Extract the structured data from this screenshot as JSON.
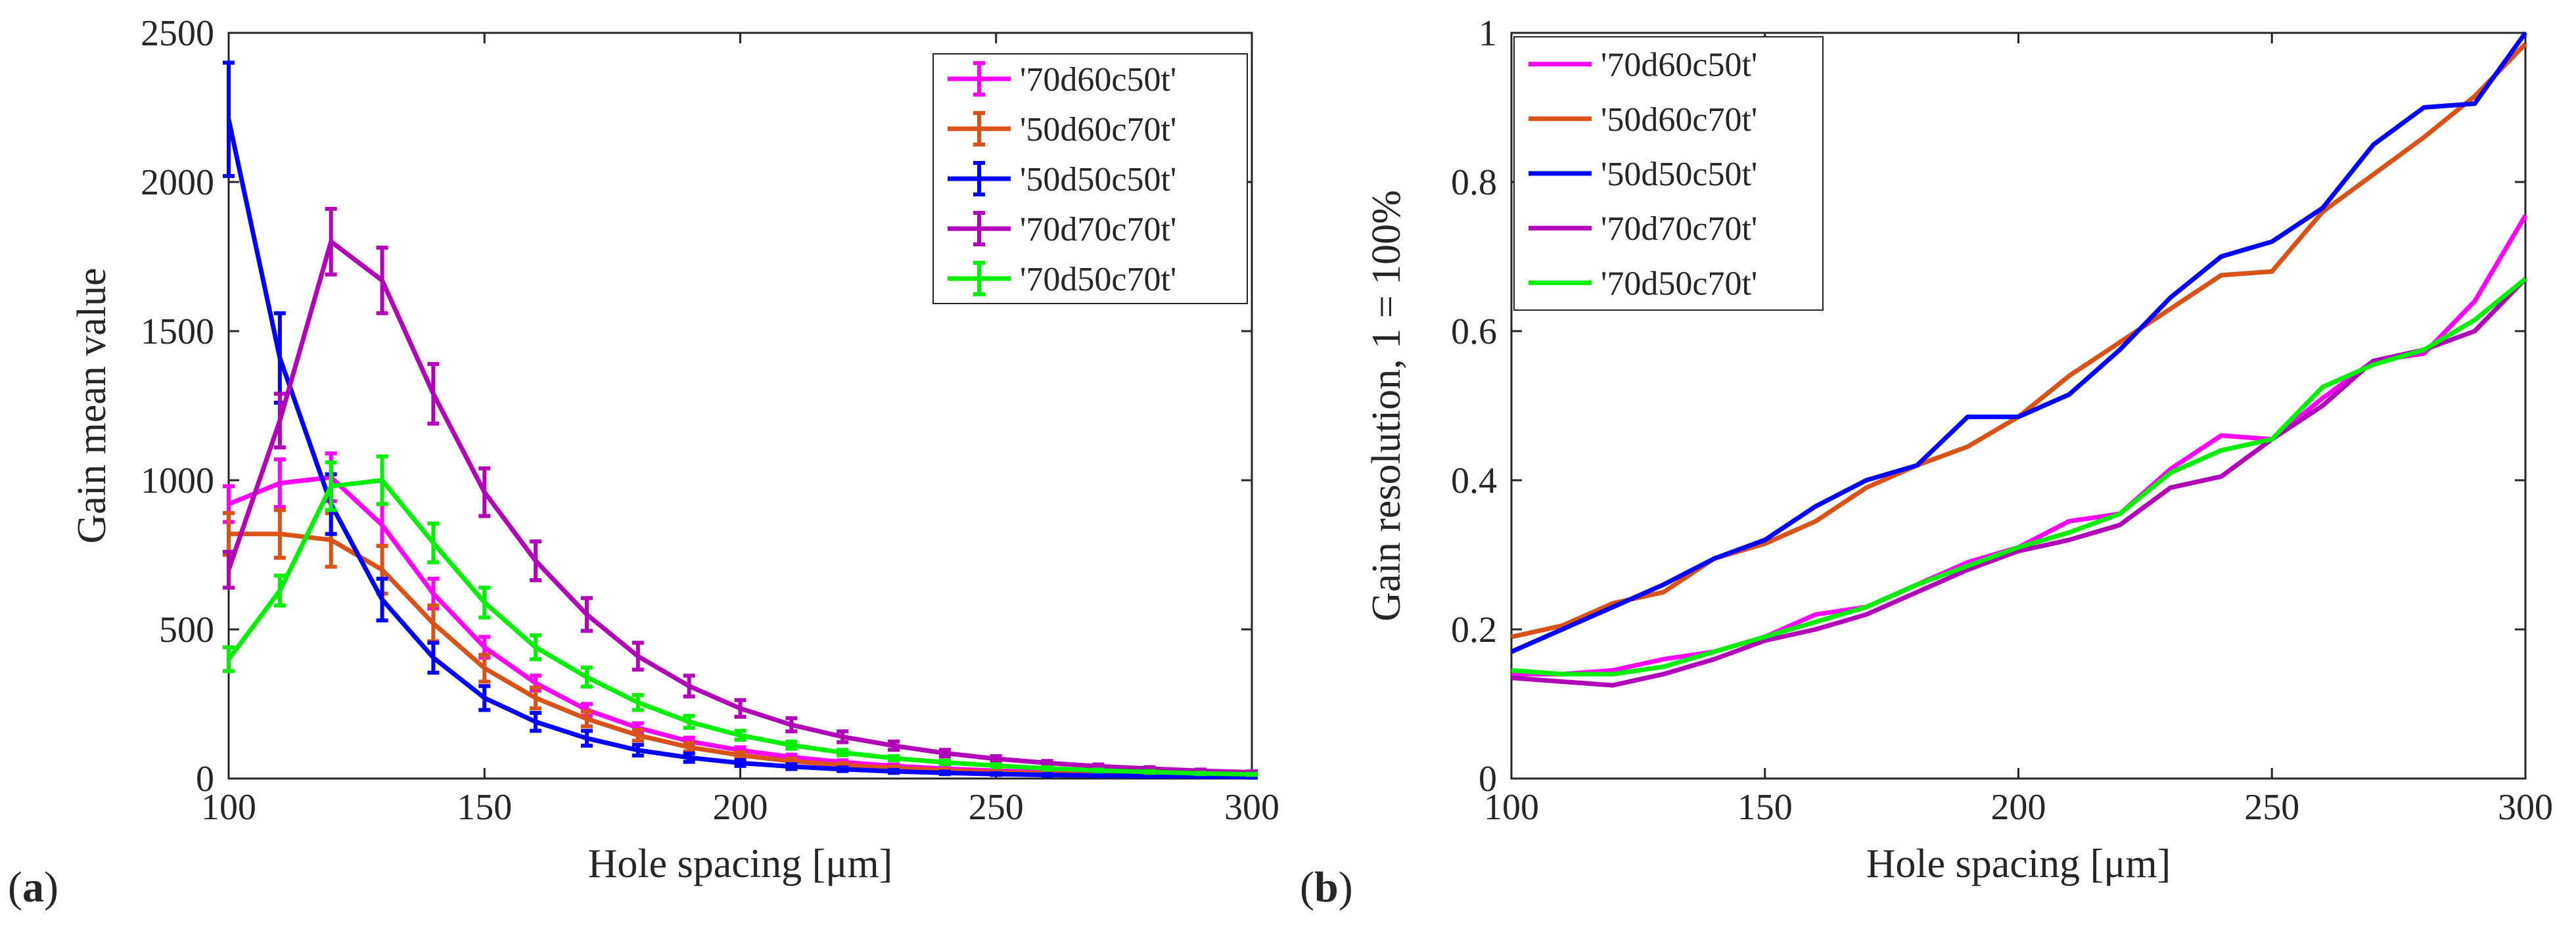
{
  "panel_labels": {
    "a_prefix": "(",
    "a_letter": "a",
    "a_suffix": ")",
    "b_prefix": "(",
    "b_letter": "b",
    "b_suffix": ")"
  },
  "colors": {
    "magenta": "#ff00ff",
    "orange": "#d95319",
    "blue": "#0000ff",
    "purple": "#b000b8",
    "green": "#00ee00",
    "axis": "#262626"
  },
  "chart_data": [
    {
      "type": "line",
      "panel": "a",
      "xlabel": "Hole spacing [μm]",
      "ylabel": "Gain mean value",
      "xlim": [
        100,
        300
      ],
      "ylim": [
        0,
        2500
      ],
      "xticks": [
        100,
        150,
        200,
        250,
        300
      ],
      "yticks": [
        0,
        500,
        1000,
        1500,
        2000,
        2500
      ],
      "legend_position": "top-right",
      "error_bars": true,
      "x": [
        100,
        110,
        120,
        130,
        140,
        150,
        160,
        170,
        180,
        190,
        200,
        210,
        220,
        230,
        240,
        250,
        260,
        270,
        280,
        290,
        300
      ],
      "series": [
        {
          "name": "'70d60c50t'",
          "color": "#ff00ff",
          "values": [
            920,
            990,
            1010,
            850,
            620,
            440,
            320,
            230,
            170,
            125,
            95,
            72,
            55,
            42,
            33,
            26,
            20,
            16,
            13,
            10,
            8
          ],
          "errors": [
            60,
            80,
            80,
            70,
            50,
            35,
            25,
            20,
            15,
            12,
            10,
            8,
            6,
            5,
            4,
            3,
            3,
            2,
            2,
            2,
            2
          ]
        },
        {
          "name": "'50d60c70t'",
          "color": "#d95319",
          "values": [
            820,
            820,
            800,
            700,
            520,
            370,
            270,
            200,
            145,
            105,
            78,
            58,
            45,
            35,
            27,
            21,
            17,
            13,
            11,
            9,
            7
          ],
          "errors": [
            70,
            80,
            90,
            80,
            60,
            45,
            35,
            25,
            18,
            14,
            10,
            8,
            6,
            5,
            4,
            3,
            3,
            2,
            2,
            2,
            2
          ]
        },
        {
          "name": "'50d50c50t'",
          "color": "#0000ff",
          "values": [
            2210,
            1410,
            920,
            600,
            405,
            270,
            190,
            135,
            95,
            70,
            52,
            40,
            31,
            24,
            19,
            15,
            12,
            10,
            8,
            7,
            5
          ],
          "errors": [
            190,
            150,
            100,
            70,
            50,
            40,
            30,
            25,
            18,
            14,
            10,
            8,
            6,
            5,
            4,
            3,
            3,
            2,
            2,
            2,
            2
          ]
        },
        {
          "name": "'70d70c70t'",
          "color": "#b000b8",
          "values": [
            700,
            1200,
            1800,
            1670,
            1290,
            960,
            730,
            550,
            410,
            310,
            235,
            180,
            140,
            110,
            85,
            66,
            52,
            41,
            33,
            26,
            21
          ],
          "errors": [
            60,
            90,
            110,
            110,
            100,
            80,
            65,
            55,
            45,
            35,
            28,
            22,
            18,
            14,
            11,
            9,
            7,
            6,
            5,
            4,
            3
          ]
        },
        {
          "name": "'70d50c70t'",
          "color": "#00ee00",
          "values": [
            400,
            630,
            980,
            1000,
            790,
            590,
            440,
            340,
            255,
            190,
            145,
            112,
            87,
            68,
            54,
            43,
            34,
            27,
            22,
            17,
            14
          ],
          "errors": [
            40,
            50,
            80,
            80,
            65,
            50,
            40,
            32,
            25,
            20,
            15,
            12,
            9,
            7,
            6,
            5,
            4,
            3,
            3,
            2,
            2
          ]
        }
      ]
    },
    {
      "type": "line",
      "panel": "b",
      "xlabel": "Hole spacing [μm]",
      "ylabel": "Gain resolution, 1 = 100%",
      "xlim": [
        100,
        300
      ],
      "ylim": [
        0,
        1
      ],
      "xticks": [
        100,
        150,
        200,
        250,
        300
      ],
      "yticks": [
        0,
        0.2,
        0.4,
        0.6,
        0.8,
        1
      ],
      "ytick_labels": [
        "0",
        "0.2",
        "0.4",
        "0.6",
        "0.8",
        "1"
      ],
      "legend_position": "top-left",
      "error_bars": false,
      "x": [
        100,
        110,
        120,
        130,
        140,
        150,
        160,
        170,
        180,
        190,
        200,
        210,
        220,
        230,
        240,
        250,
        260,
        270,
        280,
        290,
        300
      ],
      "series": [
        {
          "name": "'70d60c50t'",
          "color": "#ff00ff",
          "values": [
            0.14,
            0.14,
            0.145,
            0.16,
            0.17,
            0.19,
            0.22,
            0.23,
            0.26,
            0.29,
            0.31,
            0.345,
            0.355,
            0.415,
            0.46,
            0.455,
            0.51,
            0.56,
            0.57,
            0.64,
            0.755
          ]
        },
        {
          "name": "'50d60c70t'",
          "color": "#d95319",
          "values": [
            0.19,
            0.205,
            0.235,
            0.25,
            0.295,
            0.315,
            0.345,
            0.39,
            0.42,
            0.445,
            0.485,
            0.54,
            0.585,
            0.63,
            0.675,
            0.68,
            0.76,
            0.81,
            0.86,
            0.915,
            0.985
          ]
        },
        {
          "name": "'50d50c50t'",
          "color": "#0000ff",
          "values": [
            0.17,
            0.2,
            0.23,
            0.26,
            0.295,
            0.32,
            0.365,
            0.4,
            0.42,
            0.485,
            0.485,
            0.515,
            0.575,
            0.645,
            0.7,
            0.72,
            0.765,
            0.85,
            0.9,
            0.905,
            1.0
          ]
        },
        {
          "name": "'70d70c70t'",
          "color": "#b000b8",
          "values": [
            0.135,
            0.13,
            0.125,
            0.14,
            0.16,
            0.185,
            0.2,
            0.22,
            0.25,
            0.28,
            0.305,
            0.32,
            0.34,
            0.39,
            0.405,
            0.455,
            0.5,
            0.56,
            0.575,
            0.6,
            0.67
          ]
        },
        {
          "name": "'70d50c70t'",
          "color": "#00ee00",
          "values": [
            0.145,
            0.14,
            0.14,
            0.15,
            0.17,
            0.19,
            0.21,
            0.23,
            0.26,
            0.285,
            0.31,
            0.33,
            0.355,
            0.41,
            0.44,
            0.455,
            0.525,
            0.555,
            0.575,
            0.615,
            0.67
          ]
        }
      ]
    }
  ]
}
